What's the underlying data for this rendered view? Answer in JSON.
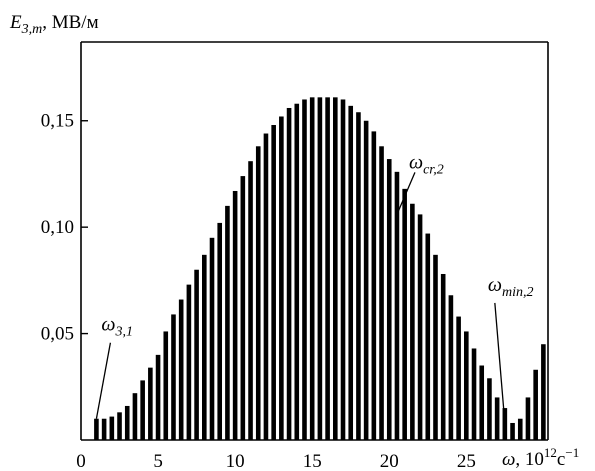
{
  "chart_data": {
    "type": "bar",
    "ylabel": {
      "symbol": "E",
      "subscript": "3,m",
      "unit": ", МВ/м"
    },
    "xlabel": {
      "symbol": "ω",
      "unit_prefix": ", 10",
      "unit_exp": "12",
      "unit_suffix": "c",
      "unit_suffix_exp": "−1"
    },
    "xlim": [
      0,
      30.3
    ],
    "ylim": [
      0,
      0.187
    ],
    "xticks": [
      "0",
      "5",
      "10",
      "15",
      "20",
      "25"
    ],
    "xtick_values": [
      0,
      5,
      10,
      15,
      20,
      25
    ],
    "yticks": [
      "0,05",
      "0,10",
      "0,15"
    ],
    "ytick_values": [
      0.05,
      0.1,
      0.15
    ],
    "grid": false,
    "x": [
      1.0,
      1.5,
      2.0,
      2.5,
      3.0,
      3.5,
      4.0,
      4.5,
      5.0,
      5.5,
      6.0,
      6.5,
      7.0,
      7.5,
      8.0,
      8.5,
      9.0,
      9.5,
      10.0,
      10.5,
      11.0,
      11.5,
      12.0,
      12.5,
      13.0,
      13.5,
      14.0,
      14.5,
      15.0,
      15.5,
      16.0,
      16.5,
      17.0,
      17.5,
      18.0,
      18.5,
      19.0,
      19.5,
      20.0,
      20.5,
      21.0,
      21.5,
      22.0,
      22.5,
      23.0,
      23.5,
      24.0,
      24.5,
      25.0,
      25.5,
      26.0,
      26.5,
      27.0,
      27.5,
      28.0,
      28.5,
      29.0,
      29.5,
      30.0
    ],
    "values": [
      0.01,
      0.01,
      0.011,
      0.013,
      0.016,
      0.022,
      0.028,
      0.034,
      0.04,
      0.051,
      0.059,
      0.066,
      0.073,
      0.08,
      0.087,
      0.095,
      0.102,
      0.11,
      0.117,
      0.124,
      0.131,
      0.138,
      0.144,
      0.148,
      0.152,
      0.156,
      0.158,
      0.16,
      0.161,
      0.161,
      0.161,
      0.161,
      0.16,
      0.157,
      0.154,
      0.15,
      0.145,
      0.138,
      0.132,
      0.126,
      0.118,
      0.111,
      0.106,
      0.097,
      0.087,
      0.078,
      0.068,
      0.058,
      0.051,
      0.043,
      0.035,
      0.029,
      0.02,
      0.015,
      0.008,
      0.01,
      0.02,
      0.033,
      0.045
    ],
    "annotations": [
      {
        "symbol": "ω",
        "subscript": "3,1",
        "x": 1.0,
        "y": 0.01
      },
      {
        "symbol": "ω",
        "subscript": "cr,2",
        "x": 20.5,
        "y": 0.106
      },
      {
        "symbol": "ω",
        "subscript": "min,2",
        "x": 27.5,
        "y": 0.008
      }
    ]
  }
}
